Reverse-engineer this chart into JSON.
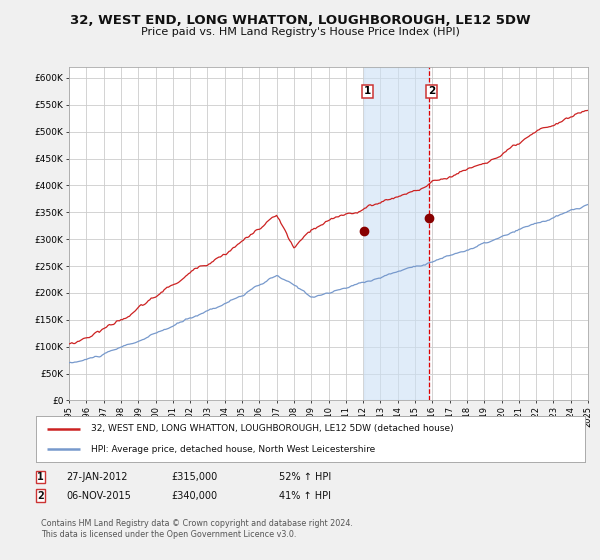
{
  "title": "32, WEST END, LONG WHATTON, LOUGHBOROUGH, LE12 5DW",
  "subtitle": "Price paid vs. HM Land Registry's House Price Index (HPI)",
  "title_fontsize": 9.5,
  "subtitle_fontsize": 8,
  "ylim": [
    0,
    620000
  ],
  "yticks": [
    0,
    50000,
    100000,
    150000,
    200000,
    250000,
    300000,
    350000,
    400000,
    450000,
    500000,
    550000,
    600000
  ],
  "ytick_labels": [
    "£0",
    "£50K",
    "£100K",
    "£150K",
    "£200K",
    "£250K",
    "£300K",
    "£350K",
    "£400K",
    "£450K",
    "£500K",
    "£550K",
    "£600K"
  ],
  "hpi_color": "#7799cc",
  "price_color": "#cc2222",
  "background_color": "#f0f0f0",
  "plot_bg_color": "#ffffff",
  "grid_color": "#cccccc",
  "shade_color": "#cce0f5",
  "dashed_line_color": "#dd0000",
  "dot_color": "#880000",
  "sale1_price": 315000,
  "sale1_date_str": "27-JAN-2012",
  "sale1_hpi_pct": "52% ↑ HPI",
  "sale2_price": 340000,
  "sale2_date_str": "06-NOV-2015",
  "sale2_hpi_pct": "41% ↑ HPI",
  "legend_red_label": "32, WEST END, LONG WHATTON, LOUGHBOROUGH, LE12 5DW (detached house)",
  "legend_blue_label": "HPI: Average price, detached house, North West Leicestershire",
  "footer": "Contains HM Land Registry data © Crown copyright and database right 2024.\nThis data is licensed under the Open Government Licence v3.0.",
  "sale1_x": 17.08,
  "sale2_x": 20.83,
  "box_edge_color": "#cc3333",
  "legend_edge_color": "#aaaaaa"
}
